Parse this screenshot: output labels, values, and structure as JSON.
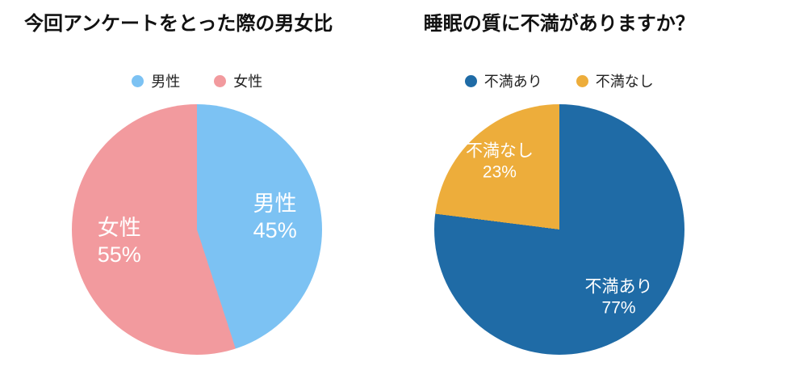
{
  "page": {
    "background": "#ffffff"
  },
  "chart_data": [
    {
      "type": "pie",
      "title": "今回アンケートをとった際の男女比",
      "labels": [
        "男性",
        "女性"
      ],
      "values": [
        45,
        55
      ],
      "unit": "%",
      "colors": [
        "#7cc2f3",
        "#f29a9e"
      ],
      "slice_label_color": "#ffffff",
      "legend_position": "top",
      "start_angle_deg": 0,
      "direction": "clockwise",
      "label_radius": 0.63
    },
    {
      "type": "pie",
      "title": "睡眠の質に不満がありますか？",
      "labels": [
        "不満あり",
        "不満なし"
      ],
      "values": [
        77,
        23
      ],
      "unit": "%",
      "colors": [
        "#1f6ba6",
        "#edad3b"
      ],
      "slice_label_color": "#ffffff",
      "legend_position": "top",
      "start_angle_deg": 0,
      "direction": "clockwise",
      "label_radius": 0.72
    }
  ]
}
